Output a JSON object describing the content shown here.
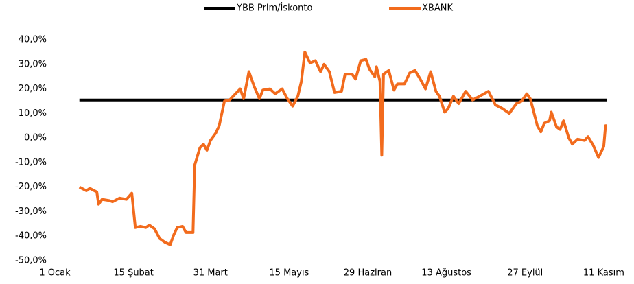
{
  "chart_data": {
    "type": "line",
    "series": [
      {
        "name": "YBB Prim/İskonto",
        "color": "#000000",
        "x": [
          15,
          317
        ],
        "values": [
          15.5,
          15.5
        ]
      },
      {
        "name": "XBANK",
        "color": "#f26b1d",
        "x": [
          15,
          19,
          21,
          25,
          26,
          28,
          32,
          34,
          38,
          42,
          45,
          47,
          50,
          53,
          55,
          58,
          61,
          64,
          67,
          69,
          71,
          74,
          76,
          80,
          81,
          84,
          86,
          88,
          90,
          93,
          95,
          98,
          101,
          103,
          107,
          109,
          112,
          115,
          118,
          120,
          124,
          127,
          131,
          134,
          137,
          140,
          142,
          144,
          147,
          150,
          153,
          155,
          158,
          161,
          165,
          167,
          171,
          173,
          176,
          179,
          181,
          184,
          185,
          187,
          188,
          189,
          192,
          195,
          197,
          201,
          204,
          207,
          210,
          213,
          216,
          219,
          221,
          224,
          226,
          229,
          232,
          236,
          240,
          244,
          249,
          253,
          257,
          261,
          265,
          268,
          271,
          273,
          277,
          279,
          281,
          284,
          285,
          288,
          290,
          292,
          295,
          297,
          300,
          304,
          306,
          309,
          312,
          315,
          316,
          317
        ],
        "values": [
          -20,
          -21.5,
          -20.5,
          -22,
          -27,
          -25,
          -25.5,
          -26,
          -24.5,
          -25,
          -22.5,
          -36.5,
          -36,
          -36.5,
          -35.5,
          -37,
          -41,
          -42.5,
          -43.5,
          -39.5,
          -36.5,
          -36,
          -38.5,
          -38.5,
          -11,
          -4,
          -2.5,
          -5,
          -1,
          2,
          5,
          15,
          15.5,
          17,
          20,
          16,
          27,
          21,
          16,
          19.5,
          20,
          18,
          20,
          16,
          13,
          17,
          23,
          35,
          30.5,
          31.5,
          27,
          30,
          27,
          18.5,
          19,
          26,
          26,
          24,
          31.5,
          32,
          28,
          25,
          29,
          23,
          -7,
          26,
          27.5,
          19.5,
          22,
          22,
          26.5,
          27.5,
          24,
          20,
          27,
          19,
          17,
          10.5,
          12,
          17,
          14,
          19,
          15.5,
          17,
          19,
          13.5,
          12,
          10,
          14,
          15,
          18,
          16,
          5,
          2.5,
          6,
          7,
          10.5,
          4.5,
          3.5,
          7,
          0,
          -2.5,
          -0.5,
          -1,
          0.5,
          -3,
          -8,
          -3.5,
          5,
          5
        ]
      }
    ],
    "xlim": [
      1,
      317
    ],
    "xticks": [
      {
        "value": 1,
        "label": "1 Ocak"
      },
      {
        "value": 46,
        "label": "15 Şubat"
      },
      {
        "value": 90,
        "label": "31 Mart"
      },
      {
        "value": 135,
        "label": "15 Mayıs"
      },
      {
        "value": 180,
        "label": "29 Haziran"
      },
      {
        "value": 225,
        "label": "13 Ağustos"
      },
      {
        "value": 270,
        "label": "27 Eylül"
      },
      {
        "value": 315,
        "label": "11 Kasım"
      }
    ],
    "ylim": [
      -50,
      40
    ],
    "yticks": [
      {
        "value": -50,
        "label": "-50,0%"
      },
      {
        "value": -40,
        "label": "-40,0%"
      },
      {
        "value": -30,
        "label": "-30,0%"
      },
      {
        "value": -20,
        "label": "-20,0%"
      },
      {
        "value": -10,
        "label": "-10,0%"
      },
      {
        "value": 0,
        "label": "0,0%"
      },
      {
        "value": 10,
        "label": "10,0%"
      },
      {
        "value": 20,
        "label": "20,0%"
      },
      {
        "value": 30,
        "label": "30,0%"
      },
      {
        "value": 40,
        "label": "40,0%"
      }
    ],
    "grid": false,
    "legend": "top"
  }
}
